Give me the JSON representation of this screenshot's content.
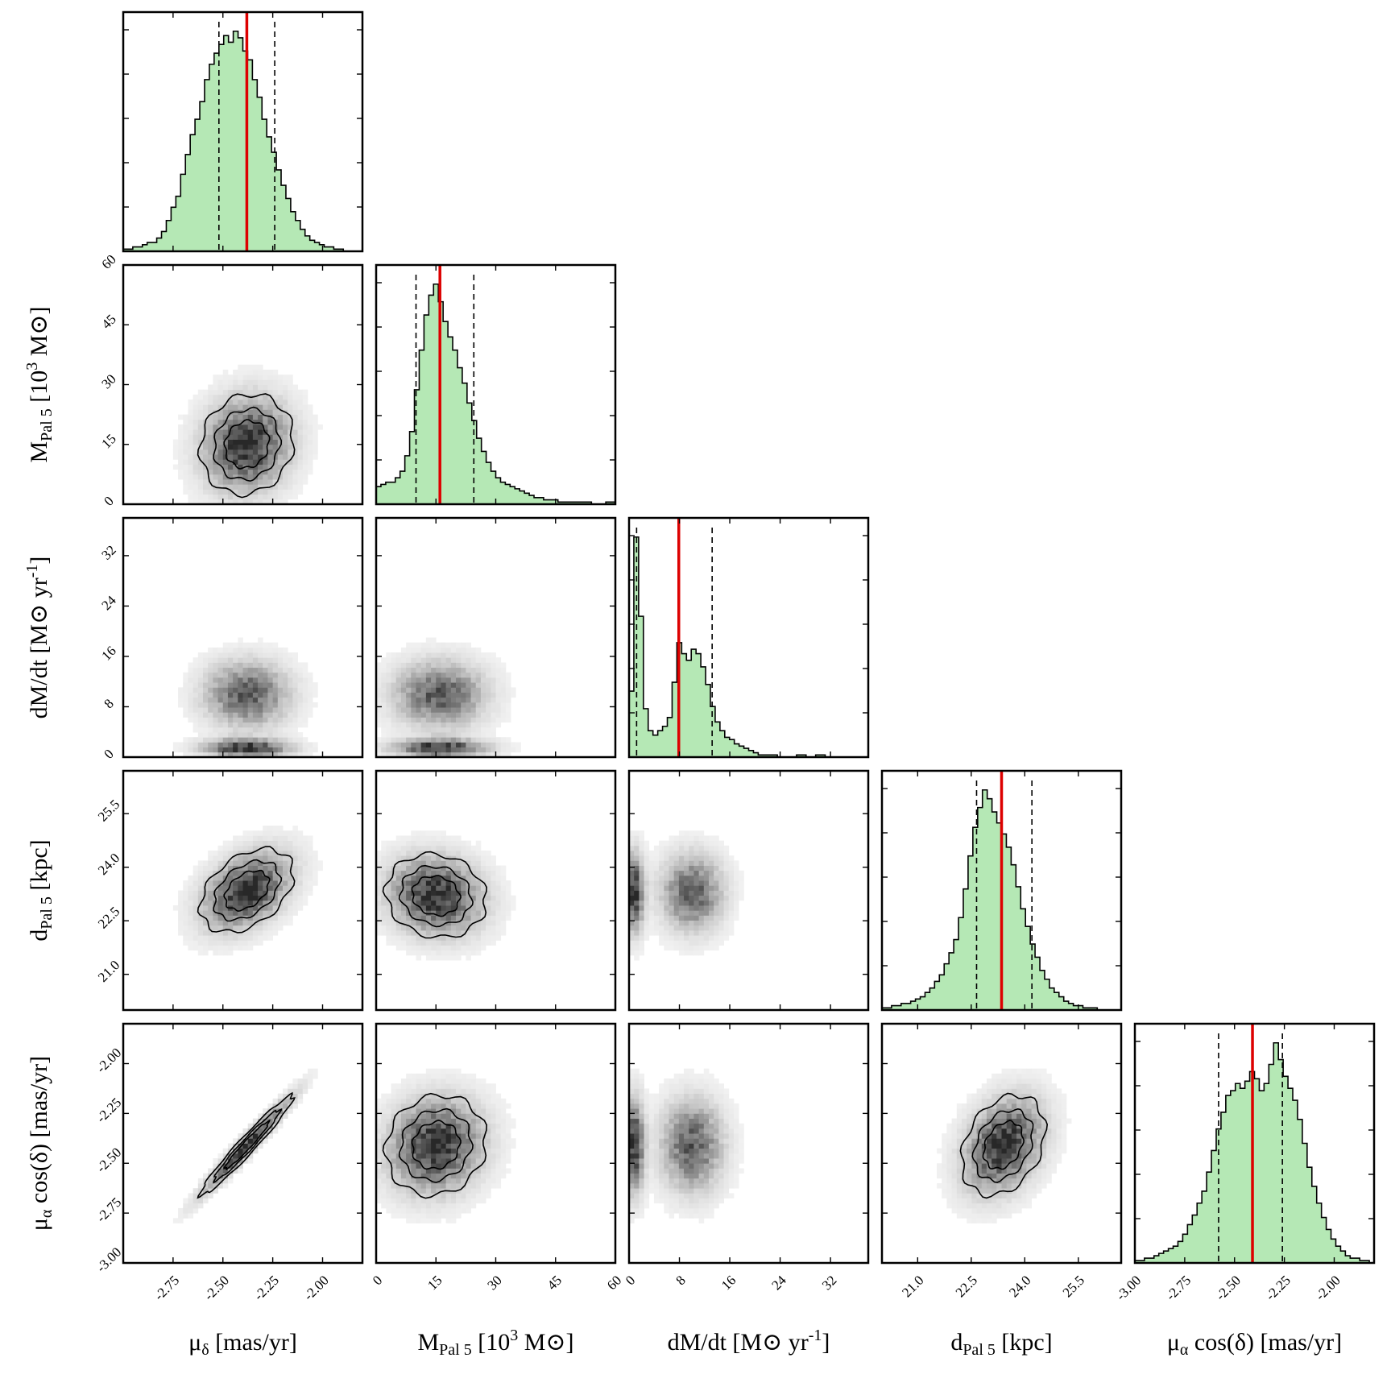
{
  "chart_data": {
    "type": "corner",
    "title": "",
    "colors": {
      "hist_fill": "#b5e8b5",
      "hist_line": "#000000",
      "median_line": "#dd0000",
      "quantile_line": "#000000",
      "density_dark": "#1a1a1a",
      "density_light": "#f4f4f4",
      "contour": "#000000"
    },
    "parameters": [
      {
        "key": "mu_delta",
        "symbol": "μ",
        "sub": "δ",
        "label_rest": "  [mas/yr]",
        "range": [
          -3.0,
          -1.8
        ],
        "ticks": [
          -2.75,
          -2.5,
          -2.25,
          -2.0
        ],
        "tick_labels": [
          "-2.75",
          "-2.50",
          "-2.25",
          "-2.00"
        ],
        "median": -2.38,
        "q16": -2.52,
        "q84": -2.24,
        "sigma": 0.13
      },
      {
        "key": "M_pal5",
        "symbol": "M",
        "sub": "Pal 5",
        "label_rest": " [10",
        "sup": "3",
        "label_tail": "  M⊙]",
        "range": [
          0,
          60
        ],
        "ticks": [
          0,
          15,
          30,
          45,
          60
        ],
        "tick_labels": [
          "0",
          "15",
          "30",
          "45",
          "60"
        ],
        "median": 16,
        "q16": 10,
        "q84": 24.5,
        "sigma": 7
      },
      {
        "key": "dMdt",
        "symbol": "dM/dt [M",
        "label_rest": "⊙ yr",
        "sup": "-1",
        "label_tail": "]",
        "range": [
          0,
          38
        ],
        "ticks": [
          0,
          8,
          16,
          24,
          32
        ],
        "tick_labels": [
          "0",
          "8",
          "16",
          "24",
          "32"
        ],
        "median": 7.9,
        "q16": 1.2,
        "q84": 13.2,
        "sigma": 3
      },
      {
        "key": "d_pal5",
        "symbol": "d",
        "sub": "Pal 5",
        "label_rest": " [kpc]",
        "range": [
          20.0,
          26.7
        ],
        "ticks": [
          21.0,
          22.5,
          24.0,
          25.5
        ],
        "tick_labels": [
          "21.0",
          "22.5",
          "24.0",
          "25.5"
        ],
        "median": 23.35,
        "q16": 22.65,
        "q84": 24.2,
        "sigma": 0.65
      },
      {
        "key": "mu_alpha",
        "symbol": "μ",
        "sub": "α",
        "label_rest": " cos(δ) [mas/yr]",
        "range": [
          -3.0,
          -1.8
        ],
        "ticks": [
          -3.0,
          -2.75,
          -2.5,
          -2.25,
          -2.0
        ],
        "tick_labels": [
          "-3.00",
          "-2.75",
          "-2.50",
          "-2.25",
          "-2.00"
        ],
        "median": -2.41,
        "q16": -2.58,
        "q84": -2.26,
        "sigma": 0.14
      }
    ],
    "histograms": [
      {
        "param": "mu_delta",
        "bins": 50,
        "counts": [
          1,
          1,
          2,
          2,
          3,
          4,
          4,
          6,
          9,
          14,
          20,
          25,
          35,
          44,
          53,
          60,
          68,
          78,
          85,
          90,
          94,
          98,
          95,
          100,
          97,
          91,
          87,
          78,
          70,
          60,
          52,
          45,
          37,
          30,
          24,
          18,
          14,
          10,
          7,
          5,
          4,
          3,
          2,
          2,
          1,
          1,
          0,
          0,
          0,
          0
        ]
      },
      {
        "param": "M_pal5",
        "bins": 50,
        "counts": [
          8,
          9,
          10,
          10,
          12,
          15,
          22,
          33,
          52,
          70,
          86,
          95,
          100,
          92,
          83,
          76,
          70,
          62,
          55,
          46,
          38,
          30,
          24,
          19,
          15,
          12,
          10,
          9,
          8,
          7,
          6,
          5,
          4,
          3,
          3,
          2,
          2,
          2,
          1,
          1,
          1,
          1,
          1,
          1,
          1,
          0,
          0,
          0,
          1,
          1
        ]
      },
      {
        "param": "dMdt",
        "bins": 50,
        "counts": [
          30,
          100,
          64,
          22,
          12,
          10,
          12,
          14,
          18,
          34,
          52,
          47,
          44,
          49,
          47,
          41,
          33,
          23,
          16,
          12,
          9,
          8,
          6,
          5,
          4,
          3,
          2,
          1,
          1,
          1,
          1,
          0,
          0,
          0,
          0,
          1,
          1,
          0,
          0,
          1,
          1,
          0,
          0,
          0,
          0,
          0,
          0,
          0,
          0,
          0
        ]
      },
      {
        "param": "d_pal5",
        "bins": 50,
        "counts": [
          1,
          1,
          2,
          2,
          3,
          3,
          4,
          5,
          6,
          8,
          10,
          13,
          16,
          21,
          26,
          32,
          42,
          55,
          70,
          83,
          92,
          100,
          96,
          90,
          85,
          80,
          74,
          66,
          56,
          46,
          38,
          30,
          24,
          18,
          14,
          10,
          8,
          6,
          4,
          3,
          2,
          2,
          1,
          1,
          1,
          0,
          0,
          0,
          0,
          0
        ]
      },
      {
        "param": "mu_alpha",
        "bins": 50,
        "counts": [
          1,
          1,
          2,
          2,
          3,
          4,
          5,
          6,
          7,
          9,
          12,
          16,
          20,
          25,
          30,
          38,
          47,
          56,
          63,
          70,
          72,
          75,
          73,
          76,
          80,
          77,
          72,
          75,
          83,
          92,
          85,
          78,
          73,
          68,
          60,
          50,
          40,
          32,
          25,
          19,
          14,
          10,
          7,
          5,
          3,
          2,
          2,
          1,
          1,
          0
        ]
      }
    ],
    "pairs": [
      {
        "x": "mu_delta",
        "y": "M_pal5",
        "rho": 0.1,
        "mean": [
          -2.38,
          15
        ]
      },
      {
        "x": "mu_delta",
        "y": "dMdt",
        "rho": 0.0,
        "mean": [
          -2.38,
          7.9
        ],
        "bimodal": true
      },
      {
        "x": "M_pal5",
        "y": "dMdt",
        "rho": 0.3,
        "mean": [
          16,
          7.9
        ],
        "bimodal": true
      },
      {
        "x": "mu_delta",
        "y": "d_pal5",
        "rho": 0.4,
        "mean": [
          -2.38,
          23.35
        ]
      },
      {
        "x": "M_pal5",
        "y": "d_pal5",
        "rho": -0.1,
        "mean": [
          15,
          23.2
        ]
      },
      {
        "x": "dMdt",
        "y": "d_pal5",
        "rho": 0.1,
        "mean": [
          7.9,
          23.3
        ],
        "bimodal": true
      },
      {
        "x": "mu_delta",
        "y": "mu_alpha",
        "rho": 0.97,
        "mean": [
          -2.38,
          -2.41
        ]
      },
      {
        "x": "M_pal5",
        "y": "mu_alpha",
        "rho": 0.1,
        "mean": [
          15,
          -2.41
        ]
      },
      {
        "x": "dMdt",
        "y": "mu_alpha",
        "rho": 0.0,
        "mean": [
          7.9,
          -2.41
        ],
        "bimodal": true
      },
      {
        "x": "d_pal5",
        "y": "mu_alpha",
        "rho": 0.3,
        "mean": [
          23.4,
          -2.41
        ]
      }
    ]
  }
}
